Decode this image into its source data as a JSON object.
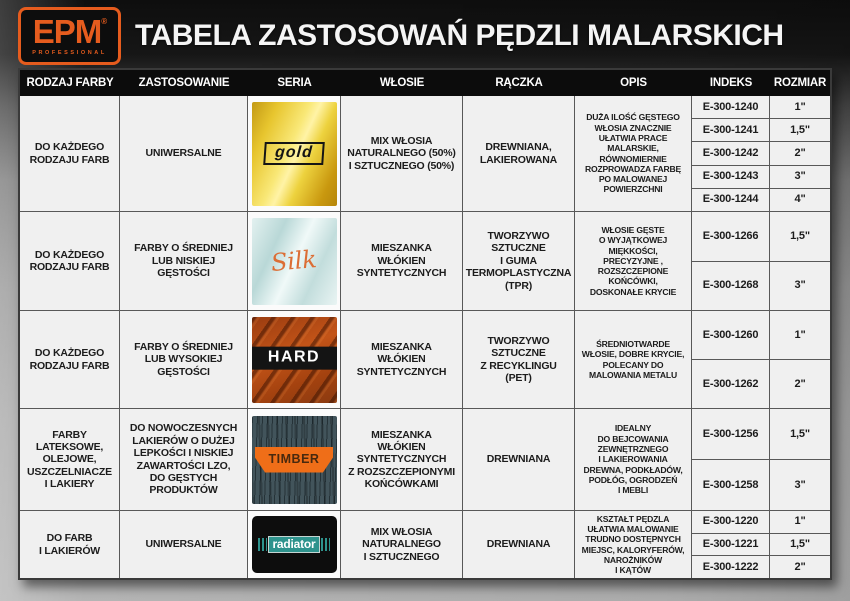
{
  "page": {
    "logo": {
      "text": "EPM",
      "registered": "®",
      "subtext": "PROFESSIONAL"
    },
    "title": "TABELA ZASTOSOWAŃ PĘDZLI MALARSKICH"
  },
  "colors": {
    "brand_orange": "#e65c1e",
    "gold_series": "#e8c52e",
    "silk_script_orange": "#dc6e35",
    "hard_rust": "#b04a16",
    "timber_slate": "#42545b",
    "timber_banner_orange": "#ef6e18",
    "radiator_teal": "#2e938d",
    "header_bar": "#0c0c0c",
    "cell_background": "#f0f0f0"
  },
  "table": {
    "columns": [
      "RODZAJ FARBY",
      "ZASTOSOWANIE",
      "SERIA",
      "WŁOSIE",
      "RĄCZKA",
      "OPIS",
      "INDEKS",
      "ROZMIAR"
    ],
    "rows": [
      {
        "rodzaj": "DO KAŻDEGO\nRODZAJU FARB",
        "zastosowanie": "UNIWERSALNE",
        "seria_label": "gold",
        "wlosie": "MIX WŁOSIA\nNATURALNEGO (50%)\nI SZTUCZNEGO (50%)",
        "raczka": "DREWNIANA,\nLAKIEROWANA",
        "opis": "DUŻA ILOŚĆ GĘSTEGO\nWŁOSIA ZNACZNIE\nUŁATWIA PRACE\nMALARSKIE,\nRÓWNOMIERNIE\nROZPROWADZA FARBĘ\nPO MALOWANEJ\nPOWIERZCHNI",
        "items": [
          {
            "indeks": "E-300-1240",
            "rozmiar": "1\""
          },
          {
            "indeks": "E-300-1241",
            "rozmiar": "1,5\""
          },
          {
            "indeks": "E-300-1242",
            "rozmiar": "2\""
          },
          {
            "indeks": "E-300-1243",
            "rozmiar": "3\""
          },
          {
            "indeks": "E-300-1244",
            "rozmiar": "4\""
          }
        ]
      },
      {
        "rodzaj": "DO KAŻDEGO\nRODZAJU FARB",
        "zastosowanie": "FARBY O ŚREDNIEJ\nLUB NISKIEJ\nGĘSTOŚCI",
        "seria_label": "Silk",
        "wlosie": "MIESZANKA\nWŁÓKIEN\nSYNTETYCZNYCH",
        "raczka": "TWORZYWO\nSZTUCZNE\nI GUMA\nTERMOPLASTYCZNA\n(TPR)",
        "opis": "WŁOSIE GĘSTE\nO WYJĄTKOWEJ\nMIĘKKOŚCI,\nPRECYZYJNE ,\nROZSZCZEPIONE\nKOŃCÓWKI,\nDOSKONAŁE KRYCIE",
        "items": [
          {
            "indeks": "E-300-1266",
            "rozmiar": "1,5\""
          },
          {
            "indeks": "E-300-1268",
            "rozmiar": "3\""
          }
        ]
      },
      {
        "rodzaj": "DO KAŻDEGO\nRODZAJU FARB",
        "zastosowanie": "FARBY O ŚREDNIEJ\nLUB WYSOKIEJ\nGĘSTOŚCI",
        "seria_label": "HARD",
        "wlosie": "MIESZANKA\nWŁÓKIEN\nSYNTETYCZNYCH",
        "raczka": "TWORZYWO\nSZTUCZNE\nZ RECYKLINGU\n(PET)",
        "opis": "ŚREDNIOTWARDE\nWŁOSIE, DOBRE KRYCIE,\nPOLECANY DO\nMALOWANIA METALU",
        "items": [
          {
            "indeks": "E-300-1260",
            "rozmiar": "1\""
          },
          {
            "indeks": "E-300-1262",
            "rozmiar": "2\""
          }
        ]
      },
      {
        "rodzaj": "FARBY\nLATEKSOWE,\nOLEJOWE,\nUSZCZELNIACZE\nI LAKIERY",
        "zastosowanie": "DO NOWOCZESNYCH\nLAKIERÓW O DUŻEJ\nLEPKOŚCI I NISKIEJ\nZAWARTOŚCI LZO,\nDO GĘSTYCH\nPRODUKTÓW",
        "seria_label": "TIMBER",
        "wlosie": "MIESZANKA\nWŁÓKIEN\nSYNTETYCZNYCH\nZ ROZSZCZEPIONYMI\nKOŃCÓWKAMI",
        "raczka": "DREWNIANA",
        "opis": "IDEALNY\nDO BEJCOWANIA\nZEWNĘTRZNEGO\nI LAKIEROWANIA\nDREWNA, PODKŁADÓW,\nPODŁÓG, OGRODZEŃ\nI MEBLI",
        "items": [
          {
            "indeks": "E-300-1256",
            "rozmiar": "1,5\""
          },
          {
            "indeks": "E-300-1258",
            "rozmiar": "3\""
          }
        ]
      },
      {
        "rodzaj": "DO FARB\nI LAKIERÓW",
        "zastosowanie": "UNIWERSALNE",
        "seria_label": "radiator",
        "wlosie": "MIX WŁOSIA\nNATURALNEGO\nI SZTUCZNEGO",
        "raczka": "DREWNIANA",
        "opis": "KSZTAŁT PĘDZLA\nUŁATWIA MALOWANIE\nTRUDNO DOSTĘPNYCH\nMIEJSC, KALORYFERÓW,\nNAROŻNIKÓW\nI KĄTÓW",
        "items": [
          {
            "indeks": "E-300-1220",
            "rozmiar": "1\""
          },
          {
            "indeks": "E-300-1221",
            "rozmiar": "1,5\""
          },
          {
            "indeks": "E-300-1222",
            "rozmiar": "2\""
          }
        ]
      }
    ]
  }
}
